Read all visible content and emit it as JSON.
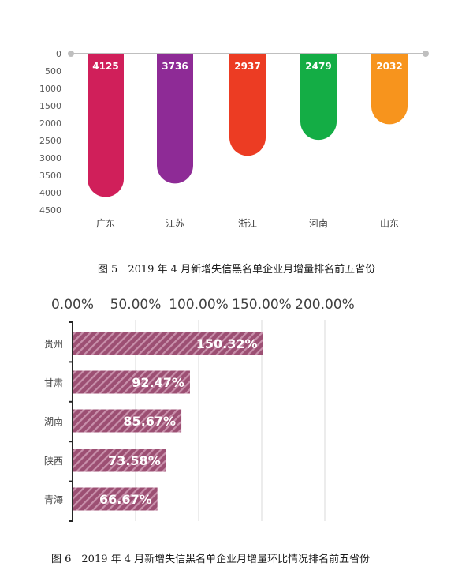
{
  "chart_data": [
    {
      "type": "bar",
      "orientation": "vertical-inverted",
      "categories": [
        "广东",
        "江苏",
        "浙江",
        "河南",
        "山东"
      ],
      "values": [
        4125,
        3736,
        2937,
        2479,
        2032
      ],
      "value_labels": [
        "4125",
        "3736",
        "2937",
        "2479",
        "2032"
      ],
      "ylim": [
        0,
        4500
      ],
      "yticks": [
        "0",
        "500",
        "1000",
        "1500",
        "2000",
        "2500",
        "3000",
        "3500",
        "4000",
        "4500"
      ],
      "colors": [
        "#d01f5a",
        "#8e2b96",
        "#ec3c23",
        "#14ad45",
        "#f7941d"
      ],
      "grid": false,
      "caption": "图 5　2019 年 4 月新增失信黑名单企业月增量排名前五省份"
    },
    {
      "type": "bar",
      "orientation": "horizontal",
      "categories": [
        "贵州",
        "甘肃",
        "湖南",
        "陕西",
        "青海"
      ],
      "values": [
        150.32,
        92.47,
        85.67,
        73.58,
        66.67
      ],
      "value_labels": [
        "150.32%",
        "92.47%",
        "85.67%",
        "73.58%",
        "66.67%"
      ],
      "xlim": [
        0,
        200
      ],
      "xticks": [
        "0.00%",
        "50.00%",
        "100.00%",
        "150.00%",
        "200.00%"
      ],
      "colors": [
        "#9c4f73"
      ],
      "grid": true,
      "caption": "图 6　2019 年 4 月新增失信黑名单企业月增量环比情况排名前五省份"
    }
  ]
}
